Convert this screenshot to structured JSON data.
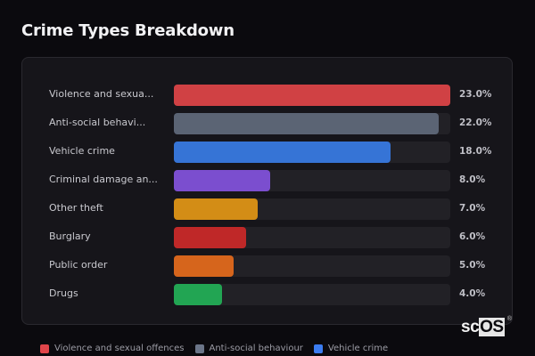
{
  "title": "Crime Types Breakdown",
  "chart_data": {
    "type": "bar",
    "orientation": "horizontal",
    "title": "Crime Types Breakdown",
    "categories": [
      "Violence and sexual offences",
      "Anti-social behaviour",
      "Vehicle crime",
      "Criminal damage and arson",
      "Other theft",
      "Burglary",
      "Public order",
      "Drugs"
    ],
    "display_labels": [
      "Violence and sexua...",
      "Anti-social behavi...",
      "Vehicle crime",
      "Criminal damage an...",
      "Other theft",
      "Burglary",
      "Public order",
      "Drugs"
    ],
    "values": [
      23.0,
      22.0,
      18.0,
      8.0,
      7.0,
      6.0,
      5.0,
      4.0
    ],
    "value_labels": [
      "23.0%",
      "22.0%",
      "18.0%",
      "8.0%",
      "7.0%",
      "6.0%",
      "5.0%",
      "4.0%"
    ],
    "colors": [
      "#d04144",
      "#5b6474",
      "#3674d6",
      "#7b4ecf",
      "#d38d16",
      "#bf2828",
      "#d6651c",
      "#22a553"
    ],
    "unit": "%",
    "max_value": 23.0,
    "grid": false,
    "legend_position": "bottom"
  },
  "legend": [
    {
      "label": "Violence and sexual offences",
      "color": "#e0454a"
    },
    {
      "label": "Anti-social behaviour",
      "color": "#6b7588"
    },
    {
      "label": "Vehicle crime",
      "color": "#3b7cf0"
    }
  ],
  "logo": {
    "text_sc": "sc",
    "text_os": "OS",
    "reg": "®"
  }
}
